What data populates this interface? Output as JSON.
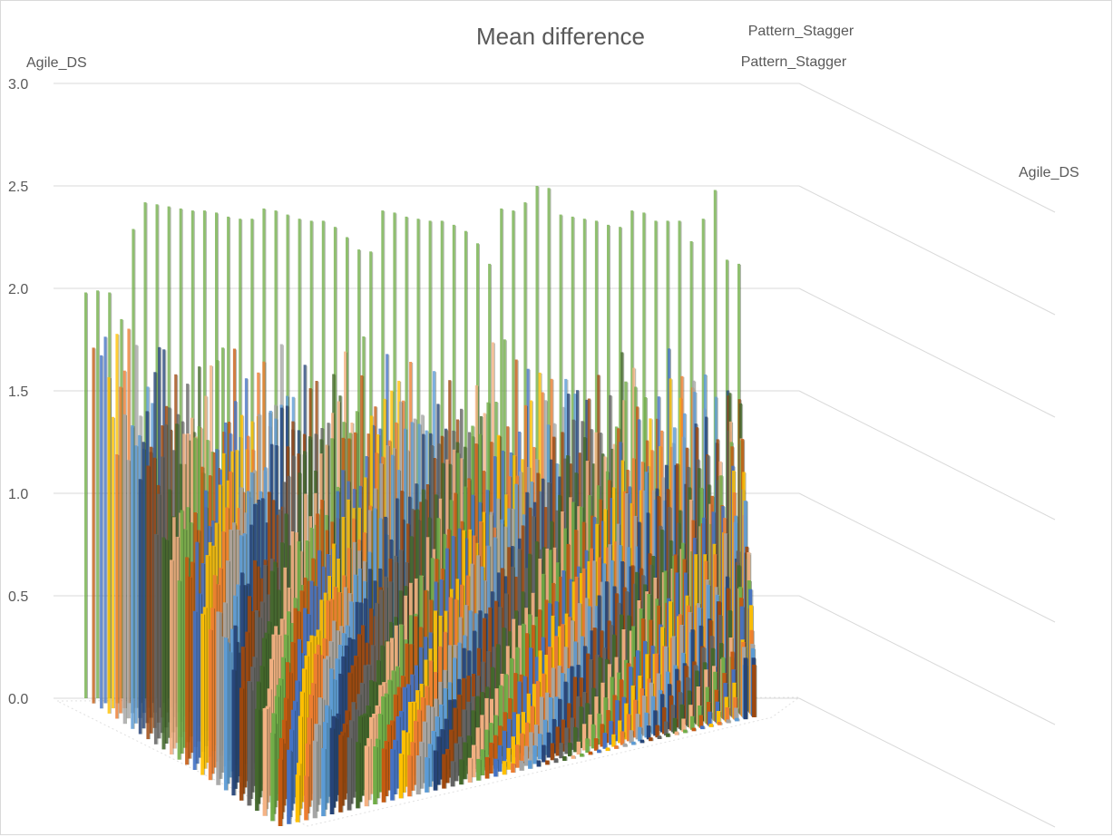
{
  "chart_data": {
    "type": "bar",
    "subtype": "3d-column",
    "title": "Mean difference",
    "series_axis_label_top": "Pattern_Stagger",
    "series_axis_label_second": "Pattern_Stagger",
    "y_axis_label": "Agile_DS",
    "depth_axis_label": "Agile_DS",
    "ylim": [
      0,
      3
    ],
    "y_ticks": [
      "0.0",
      "0.5",
      "1.0",
      "1.5",
      "2.0",
      "2.5",
      "3.0"
    ],
    "grid": true,
    "legend": "none",
    "palette": [
      "#70ad47",
      "#c55a11",
      "#4472c4",
      "#ffc000",
      "#ed7d31",
      "#a5a5a5",
      "#5b9bd5",
      "#264478",
      "#9e480e",
      "#636363",
      "#43682b",
      "#f4b183"
    ],
    "back_row_peaks": [
      1.98,
      1.99,
      1.98,
      1.85,
      2.29,
      2.42,
      2.41,
      2.4,
      2.39,
      2.38,
      2.38,
      2.37,
      2.35,
      2.34,
      2.34,
      2.39,
      2.38,
      2.36,
      2.34,
      2.33,
      2.33,
      2.3,
      2.25,
      2.19,
      2.18,
      2.38,
      2.37,
      2.35,
      2.34,
      2.33,
      2.33,
      2.31,
      2.28,
      2.22,
      2.12,
      2.39,
      2.38,
      2.42,
      2.5,
      2.49,
      2.36,
      2.35,
      2.34,
      2.33,
      2.31,
      2.3,
      2.38,
      2.37,
      2.33,
      2.33,
      2.33,
      2.23,
      2.34,
      2.48,
      2.14,
      2.14,
      2.12
    ],
    "front_row_profile": [
      0.46,
      0.32,
      0.31,
      0.45,
      0.44,
      0.46,
      0.45,
      0.44,
      0.42,
      0.4,
      0.38,
      0.35,
      0.3,
      0.28,
      0.26,
      0.24,
      0.22,
      0.2,
      0.18,
      0.16,
      0.15,
      0.14,
      0.12,
      0.1,
      0.08,
      0.06,
      0.05,
      0.04,
      0.03,
      0.03,
      0.03,
      0.02,
      0.02,
      0.02,
      0.02,
      0.02,
      0.02,
      0.02,
      0.02,
      0.02,
      0.02,
      0.02,
      0.02,
      0.02,
      0.02,
      0.02,
      0.02,
      0.02,
      0.02,
      0.02,
      0.33,
      0.33
    ]
  }
}
